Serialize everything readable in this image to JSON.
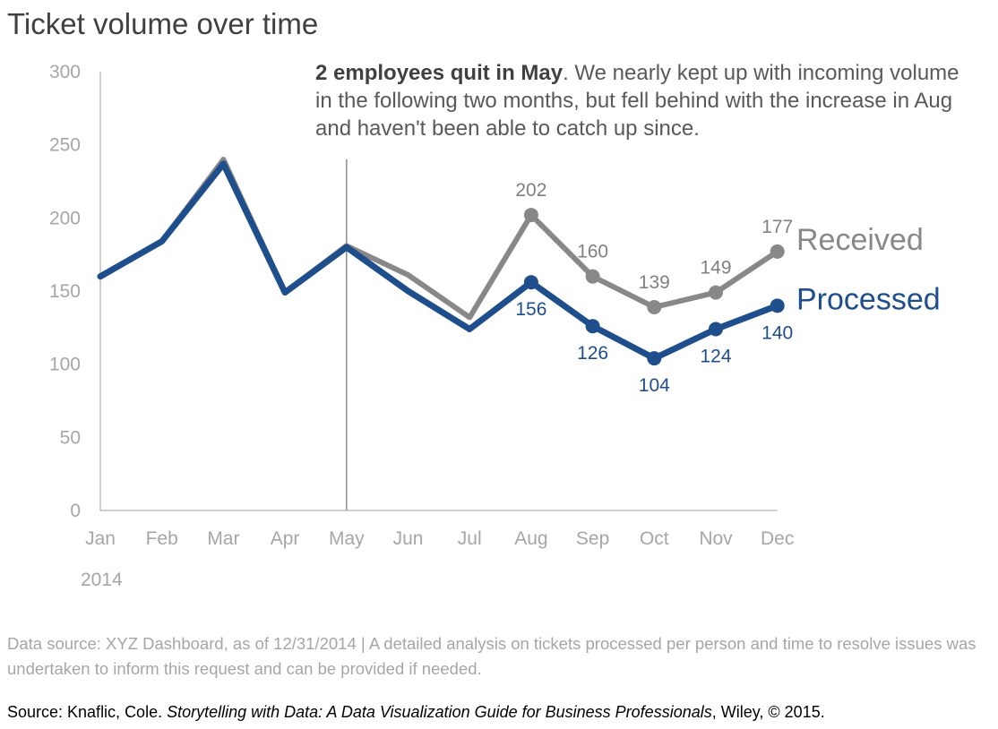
{
  "chart_data": {
    "type": "line",
    "title": "Ticket volume over time",
    "categories": [
      "Jan",
      "Feb",
      "Mar",
      "Apr",
      "May",
      "Jun",
      "Jul",
      "Aug",
      "Sep",
      "Oct",
      "Nov",
      "Dec"
    ],
    "year_label": "2014",
    "ylim": [
      0,
      300
    ],
    "yticks": [
      0,
      50,
      100,
      150,
      200,
      250,
      300
    ],
    "grid": false,
    "series": [
      {
        "name": "Received",
        "color": "#888888",
        "values": [
          160,
          184,
          240,
          149,
          181,
          161,
          132,
          202,
          160,
          139,
          149,
          177
        ],
        "labels": [
          null,
          null,
          null,
          null,
          null,
          null,
          null,
          "202",
          "160",
          "139",
          "149",
          "177"
        ]
      },
      {
        "name": "Processed",
        "color": "#1f4e8c",
        "values": [
          160,
          184,
          237,
          149,
          180,
          150,
          124,
          156,
          126,
          104,
          124,
          140
        ],
        "labels": [
          null,
          null,
          null,
          null,
          null,
          null,
          null,
          "156",
          "126",
          "104",
          "124",
          "140"
        ]
      }
    ],
    "marker_line_month": "May",
    "annotation": {
      "bold": "2 employees quit in May",
      "text": ". We nearly kept up with incoming volume in the following two months, but fell behind with the increase in Aug and haven't been able to catch up since."
    }
  },
  "footnote": "Data source: XYZ Dashboard, as of 12/31/2014  |  A detailed analysis on tickets processed per person and time to resolve issues was undertaken to inform this request and can be provided if needed.",
  "credit": {
    "prefix": "Source: Knaflic, Cole. ",
    "book": "Storytelling with Data: A Data Visualization Guide for Business Professionals",
    "suffix": ", Wiley, © 2015."
  }
}
